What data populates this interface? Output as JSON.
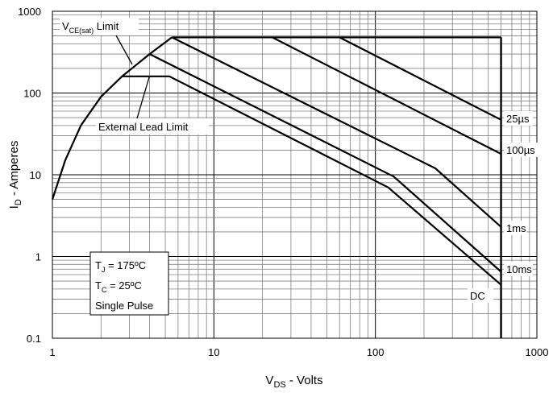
{
  "chart_data": {
    "type": "line",
    "x_scale": "log",
    "y_scale": "log",
    "xlim": [
      1,
      1000
    ],
    "ylim": [
      0.1,
      1000
    ],
    "grid": true,
    "xlabel": {
      "main": "V",
      "sub": "DS",
      "rest": " - Volts"
    },
    "ylabel": {
      "main": "I",
      "sub": "D",
      "rest": " - Amperes"
    },
    "x_ticks": [
      "1",
      "10",
      "100",
      "1000"
    ],
    "y_ticks": [
      "0.1",
      "1",
      "10",
      "100",
      "1000"
    ],
    "series": [
      {
        "name": "25µs",
        "x": [
          5.5,
          600
        ],
        "y": [
          480,
          480
        ],
        "x2": [
          60,
          600
        ],
        "y2": [
          480,
          47
        ]
      },
      {
        "name": "100µs",
        "x": [
          23,
          600
        ],
        "y": [
          480,
          18
        ]
      },
      {
        "name": "1ms",
        "x": [
          5.5,
          235,
          600
        ],
        "y": [
          480,
          12,
          2.3
        ]
      },
      {
        "name": "10ms",
        "x": [
          4,
          130,
          600
        ],
        "y": [
          300,
          9.5,
          0.65
        ]
      },
      {
        "name": "DC",
        "x": [
          2.7,
          5.3,
          120,
          600
        ],
        "y": [
          160,
          160,
          7,
          0.45
        ]
      }
    ],
    "envelope": {
      "vce_sat_limit": {
        "x": [
          1,
          1.2,
          1.5,
          2,
          2.7,
          4,
          5.5
        ],
        "y": [
          5,
          15,
          40,
          90,
          160,
          300,
          480
        ]
      },
      "max_current": 480,
      "max_voltage": 600
    },
    "annotations": {
      "vce_sat": {
        "main": "V",
        "sub": "CE(sat)",
        "rest": " Limit"
      },
      "lead_limit": "External Lead Limit",
      "conditions": [
        {
          "main": "T",
          "sub": "J",
          "rest": " = 175ºC"
        },
        {
          "main": "T",
          "sub": "C",
          "rest": " = 25ºC"
        },
        {
          "main": "Single Pulse",
          "sub": "",
          "rest": ""
        }
      ]
    }
  }
}
